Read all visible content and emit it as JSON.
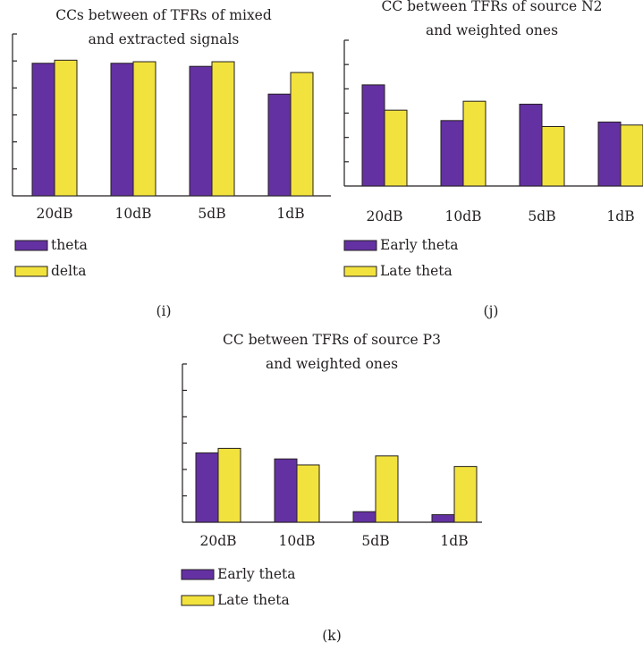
{
  "colors": {
    "series1": "#6431a3",
    "series2": "#f2e23e",
    "stroke": "#231f20"
  },
  "chart_data": [
    {
      "type": "bar",
      "panel": "(i)",
      "title": [
        "CCs between of TFRs of mixed",
        "and extracted signals"
      ],
      "categories": [
        "20dB",
        "10dB",
        "5dB",
        "1dB"
      ],
      "series": [
        {
          "name": "theta",
          "values": [
            0.86,
            0.86,
            0.84,
            0.66
          ]
        },
        {
          "name": "delta",
          "values": [
            0.88,
            0.87,
            0.87,
            0.8
          ]
        }
      ],
      "ylim": [
        0,
        1.05
      ],
      "y_tick_count": 6,
      "legend_position": "bottom-left"
    },
    {
      "type": "bar",
      "panel": "(j)",
      "title": [
        "CC between TFRs of source N2",
        "and weighted ones"
      ],
      "categories": [
        "20dB",
        "10dB",
        "5dB",
        "1dB"
      ],
      "series": [
        {
          "name": "Early theta",
          "values": [
            0.68,
            0.44,
            0.55,
            0.43
          ]
        },
        {
          "name": "Late theta",
          "values": [
            0.51,
            0.57,
            0.4,
            0.41
          ]
        }
      ],
      "ylim": [
        0,
        0.98
      ],
      "y_tick_count": 6,
      "legend_position": "bottom-left"
    },
    {
      "type": "bar",
      "panel": "(k)",
      "title": [
        "CC between TFRs of source P3",
        "and weighted ones"
      ],
      "categories": [
        "20dB",
        "10dB",
        "5dB",
        "1dB"
      ],
      "series": [
        {
          "name": "Early theta",
          "values": [
            0.46,
            0.42,
            0.07,
            0.05
          ]
        },
        {
          "name": "Late theta",
          "values": [
            0.49,
            0.38,
            0.44,
            0.37
          ]
        }
      ],
      "ylim": [
        0,
        1.05
      ],
      "y_tick_count": 6,
      "legend_position": "bottom-left"
    }
  ]
}
